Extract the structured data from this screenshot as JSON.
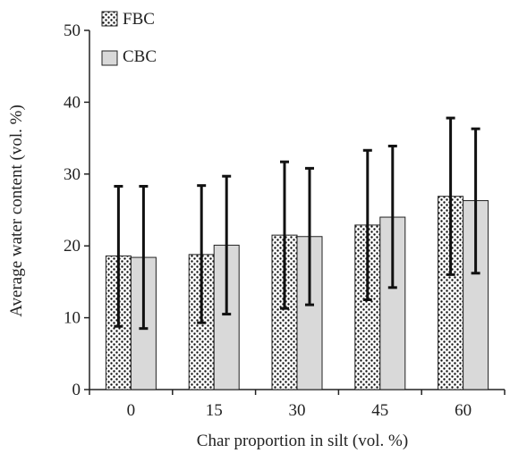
{
  "chart_data": {
    "type": "bar",
    "xlabel": "Char proportion in silt (vol. %)",
    "ylabel": "Average water content (vol. %)",
    "ylim": [
      0,
      50
    ],
    "yticks": [
      0,
      10,
      20,
      30,
      40,
      50
    ],
    "categories": [
      "0",
      "15",
      "30",
      "45",
      "60"
    ],
    "grid": false,
    "legend_position": "top-left",
    "series": [
      {
        "name": "FBC",
        "pattern": "dotted",
        "color": "#ffffff",
        "dot_color": "#111111",
        "values": [
          18.6,
          18.8,
          21.5,
          22.9,
          26.9
        ],
        "error_low": [
          8.8,
          9.3,
          11.3,
          12.5,
          16.0
        ],
        "error_high": [
          28.3,
          28.4,
          31.7,
          33.3,
          37.8
        ]
      },
      {
        "name": "CBC",
        "pattern": "solid",
        "color": "#d9d9d9",
        "values": [
          18.4,
          20.1,
          21.3,
          24.0,
          26.3
        ],
        "error_low": [
          8.5,
          10.5,
          11.8,
          14.2,
          16.2
        ],
        "error_high": [
          28.3,
          29.7,
          30.8,
          33.9,
          36.3
        ]
      }
    ]
  }
}
